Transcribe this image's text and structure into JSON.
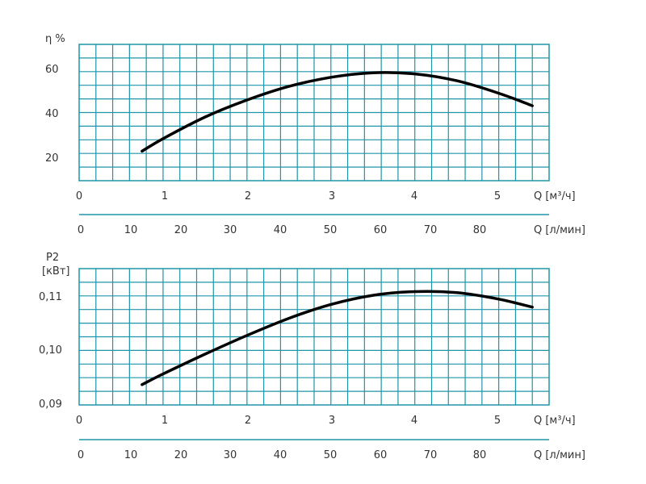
{
  "chart_data": [
    {
      "type": "line",
      "title": "",
      "ylabel": "η %",
      "ylabel_unit": "",
      "xlabel": "Q [м³/ч]",
      "xlabel_secondary": "Q [л/мин]",
      "x_ticks": [
        "0",
        "1",
        "2",
        "3",
        "4",
        "5"
      ],
      "x_secondary_ticks": [
        "0",
        "10",
        "20",
        "30",
        "40",
        "50",
        "60",
        "70",
        "80"
      ],
      "y_ticks": [
        "20",
        "40",
        "60"
      ],
      "xlim": [
        0,
        5.6
      ],
      "ylim": [
        10,
        70
      ],
      "grid": true,
      "series": [
        {
          "x": [
            0.75,
            1.0,
            1.5,
            2.0,
            2.5,
            3.0,
            3.5,
            4.0,
            4.5,
            5.0,
            5.4
          ],
          "y": [
            23,
            28.5,
            38,
            45.5,
            51.5,
            55.5,
            57.5,
            57,
            54,
            48.5,
            43
          ]
        }
      ]
    },
    {
      "type": "line",
      "title": "",
      "ylabel": "P2",
      "ylabel_unit": "[кВт]",
      "xlabel": "Q [м³/ч]",
      "xlabel_secondary": "Q [л/мин]",
      "x_ticks": [
        "0",
        "1",
        "2",
        "3",
        "4",
        "5"
      ],
      "x_secondary_ticks": [
        "0",
        "10",
        "20",
        "30",
        "40",
        "50",
        "60",
        "70",
        "80"
      ],
      "y_ticks": [
        "0,09",
        "0,10",
        "0,11"
      ],
      "y_tick_values": [
        0.09,
        0.1,
        0.11
      ],
      "xlim": [
        0,
        5.6
      ],
      "ylim": [
        0.09,
        0.1155
      ],
      "grid": true,
      "series": [
        {
          "x": [
            0.75,
            1.0,
            1.5,
            2.0,
            2.5,
            3.0,
            3.5,
            4.0,
            4.5,
            5.0,
            5.4
          ],
          "y": [
            0.0938,
            0.0958,
            0.0995,
            0.103,
            0.1062,
            0.1088,
            0.1105,
            0.1112,
            0.111,
            0.1098,
            0.1083
          ]
        }
      ]
    }
  ],
  "colors": {
    "grid": "#1f95a8",
    "curve": "#000000",
    "text": "#333333"
  }
}
